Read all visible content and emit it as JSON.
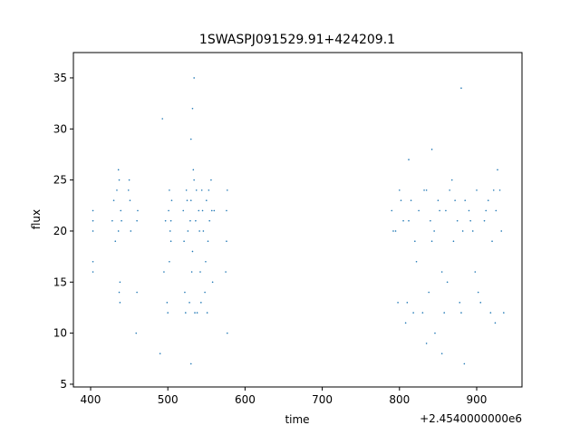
{
  "chart_data": {
    "type": "scatter",
    "title": "1SWASPJ091529.91+424209.1",
    "x_label": "time",
    "y_label": "flux",
    "x_offset_label": "+2.4540000000e6",
    "color": "#1f77b4",
    "x": [
      403,
      403,
      403,
      403,
      403,
      428,
      430,
      432,
      434,
      436,
      437,
      438,
      439,
      436,
      437,
      438,
      440,
      449,
      450,
      451,
      452,
      459,
      460,
      460,
      461,
      495,
      497,
      499,
      501,
      502,
      503,
      504,
      505,
      500,
      502,
      504,
      520,
      522,
      524,
      526,
      528,
      530,
      532,
      534,
      536,
      538,
      540,
      542,
      544,
      546,
      548,
      550,
      552,
      554,
      556,
      558,
      560,
      521,
      525,
      529,
      533,
      537,
      541,
      545,
      549,
      553,
      557,
      523,
      531,
      535,
      543,
      551,
      530,
      532,
      534,
      575,
      576,
      577,
      576,
      577,
      530,
      490,
      493,
      790,
      795,
      800,
      805,
      810,
      815,
      820,
      825,
      830,
      835,
      840,
      845,
      850,
      855,
      860,
      865,
      870,
      875,
      880,
      885,
      890,
      895,
      900,
      905,
      910,
      915,
      920,
      925,
      930,
      935,
      792,
      802,
      812,
      822,
      832,
      842,
      852,
      862,
      872,
      882,
      892,
      902,
      912,
      922,
      932,
      798,
      818,
      838,
      858,
      878,
      898,
      918,
      835,
      855,
      880,
      812,
      868,
      927,
      842,
      808,
      846,
      884,
      924
    ],
    "y": [
      16,
      17,
      20,
      21,
      22,
      21,
      23,
      19,
      24,
      26,
      14,
      13,
      22,
      20,
      25,
      15,
      21,
      24,
      25,
      23,
      20,
      10,
      21,
      14,
      22,
      16,
      21,
      13,
      22,
      24,
      20,
      19,
      23,
      12,
      17,
      21,
      22,
      14,
      24,
      20,
      13,
      23,
      18,
      25,
      21,
      12,
      22,
      16,
      24,
      20,
      14,
      23,
      19,
      21,
      25,
      15,
      22,
      19,
      23,
      21,
      26,
      24,
      20,
      22,
      17,
      24,
      22,
      12,
      16,
      12,
      13,
      12,
      29,
      32,
      35,
      16,
      22,
      24,
      19,
      10,
      7,
      8,
      31,
      22,
      20,
      24,
      21,
      13,
      23,
      19,
      22,
      12,
      24,
      21,
      20,
      23,
      16,
      22,
      24,
      19,
      21,
      12,
      23,
      22,
      20,
      24,
      13,
      21,
      23,
      19,
      22,
      24,
      12,
      20,
      23,
      21,
      17,
      24,
      19,
      22,
      15,
      23,
      20,
      21,
      14,
      22,
      24,
      20,
      13,
      12,
      14,
      12,
      13,
      16,
      12,
      9,
      8,
      34,
      27,
      25,
      26,
      28,
      11,
      10,
      7,
      11
    ],
    "xlim": [
      377.7,
      958.7
    ],
    "ylim": [
      4.73,
      37.48
    ],
    "xticks": [
      400,
      500,
      600,
      700,
      800,
      900
    ],
    "yticks": [
      5,
      10,
      15,
      20,
      25,
      30,
      35
    ]
  }
}
